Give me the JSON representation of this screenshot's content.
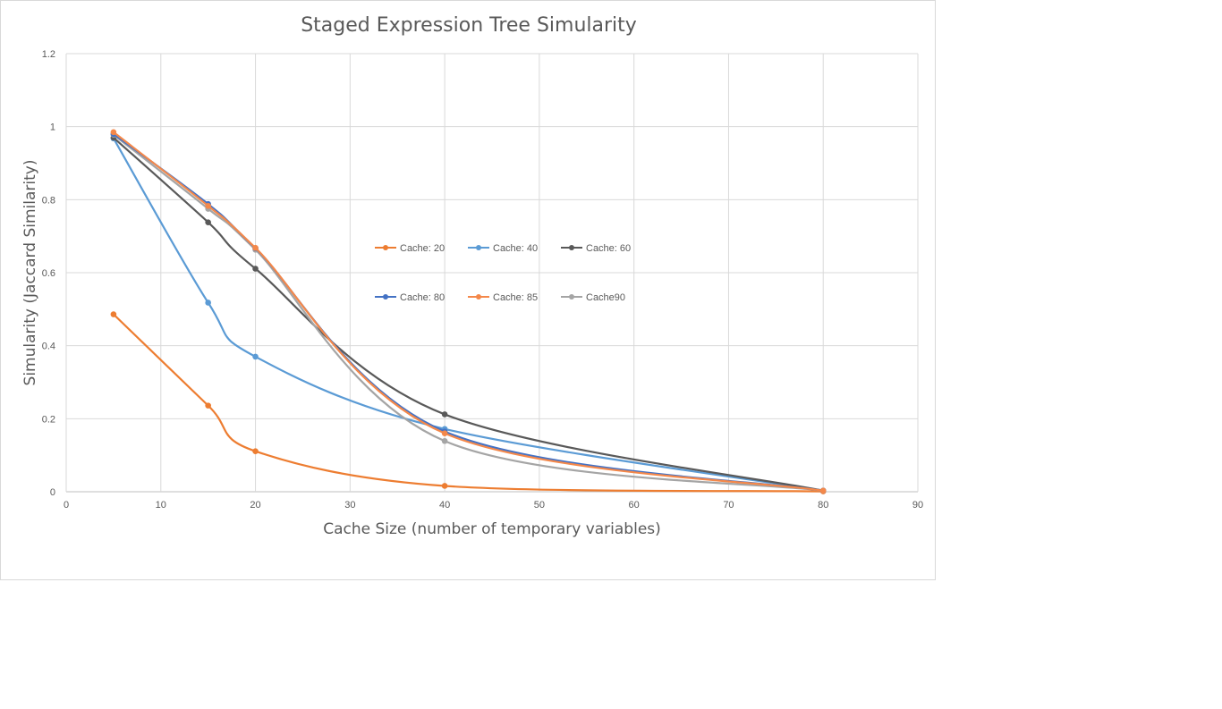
{
  "chart_data": {
    "type": "line",
    "title": "Staged Expression Tree Simularity",
    "xlabel": "Cache Size (number of temporary variables)",
    "ylabel": "Simularity (Jaccard Similarity)",
    "xlim": [
      0,
      90
    ],
    "ylim": [
      0,
      1.2
    ],
    "xticks": [
      "0",
      "10",
      "20",
      "30",
      "40",
      "50",
      "60",
      "70",
      "80",
      "90"
    ],
    "yticks": [
      "0",
      "0.2",
      "0.4",
      "0.6",
      "0.8",
      "1",
      "1.2"
    ],
    "grid": true,
    "smooth": true,
    "legend_placement": "center",
    "x": [
      5,
      15,
      20,
      40,
      80
    ],
    "series": [
      {
        "name": "Cache: 20",
        "color": "#ED7D31",
        "values": [
          0.486,
          0.236,
          0.111,
          0.016,
          0.001
        ]
      },
      {
        "name": "Cache: 40",
        "color": "#5B9BD5",
        "values": [
          0.968,
          0.518,
          0.37,
          0.172,
          0.003
        ]
      },
      {
        "name": "Cache: 60",
        "color": "#595959",
        "values": [
          0.97,
          0.738,
          0.611,
          0.212,
          0.003
        ]
      },
      {
        "name": "Cache: 80",
        "color": "#4472C4",
        "values": [
          0.98,
          0.788,
          0.667,
          0.165,
          0.003
        ]
      },
      {
        "name": "Cache: 85",
        "color": "#F4884A",
        "values": [
          0.985,
          0.783,
          0.668,
          0.16,
          0.003
        ]
      },
      {
        "name": "Cache90",
        "color": "#A5A5A5",
        "values": [
          0.978,
          0.775,
          0.663,
          0.139,
          0.003
        ]
      }
    ]
  }
}
